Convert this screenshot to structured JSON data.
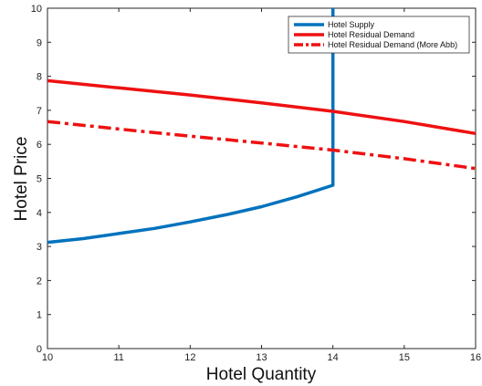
{
  "chart_data": {
    "type": "line",
    "title": "",
    "xlabel": "Hotel Quantity",
    "ylabel": "Hotel Price",
    "xlim": [
      10,
      16
    ],
    "ylim": [
      0,
      10
    ],
    "xticks": [
      "10",
      "11",
      "12",
      "13",
      "14",
      "15",
      "16"
    ],
    "yticks": [
      "0",
      "1",
      "2",
      "3",
      "4",
      "5",
      "6",
      "7",
      "8",
      "9",
      "10"
    ],
    "grid": false,
    "legend_position": "top-right",
    "series": [
      {
        "name": "Hotel Supply",
        "color": "#0072bd",
        "style": "solid",
        "x": [
          10,
          10.5,
          11,
          11.5,
          12,
          12.5,
          13,
          13.5,
          14,
          14,
          14
        ],
        "y": [
          3.12,
          3.23,
          3.38,
          3.53,
          3.72,
          3.93,
          4.17,
          4.46,
          4.8,
          5.0,
          10
        ]
      },
      {
        "name": "Hotel Residual Demand",
        "color": "#ee1111",
        "style": "solid",
        "x": [
          10,
          11,
          12,
          13,
          14,
          15,
          16
        ],
        "y": [
          7.87,
          7.66,
          7.45,
          7.22,
          6.97,
          6.67,
          6.32
        ]
      },
      {
        "name": "Hotel Residual Demand (More Abb)",
        "color": "#ee1111",
        "style": "dashdot",
        "x": [
          10,
          11,
          12,
          13,
          14,
          15,
          16
        ],
        "y": [
          6.67,
          6.45,
          6.24,
          6.04,
          5.83,
          5.58,
          5.29
        ]
      }
    ]
  }
}
